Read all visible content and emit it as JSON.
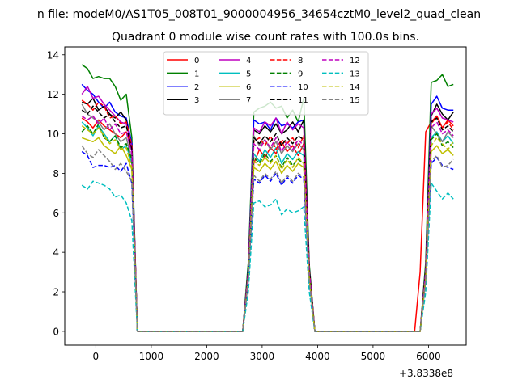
{
  "chart_data": {
    "type": "line",
    "suptitle": "n file: modeM0/AS1T05_008T01_9000004956_34654cztM0_level2_quad_clean",
    "title": "Quadrant 0 module wise count rates with 100.0s bins.",
    "xlabel": "",
    "ylabel": "",
    "x_offset_label": "+3.8338e8",
    "xlim": [
      -560,
      6680
    ],
    "ylim": [
      -0.7,
      14.4
    ],
    "xticks": [
      0,
      1000,
      2000,
      3000,
      4000,
      5000,
      6000
    ],
    "yticks": [
      0,
      2,
      4,
      6,
      8,
      10,
      12,
      14
    ],
    "grid": false,
    "legend": {
      "placement": "upper-center",
      "columns": 4
    },
    "x": [
      -250,
      -150,
      -50,
      50,
      150,
      250,
      350,
      450,
      550,
      650,
      750,
      850,
      950,
      1050,
      1150,
      1250,
      1350,
      1450,
      1550,
      1650,
      1750,
      1850,
      1950,
      2050,
      2150,
      2250,
      2350,
      2450,
      2550,
      2650,
      2750,
      2850,
      2950,
      3050,
      3150,
      3250,
      3350,
      3450,
      3550,
      3650,
      3750,
      3850,
      3950,
      4050,
      4150,
      4250,
      4350,
      4450,
      4550,
      4650,
      4750,
      4850,
      4950,
      5050,
      5150,
      5250,
      5350,
      5450,
      5550,
      5650,
      5750,
      5850,
      5950,
      6050,
      6150,
      6250,
      6350,
      6450
    ],
    "series": [
      {
        "name": "0",
        "color": "#ff0000",
        "dash": "solid",
        "values": [
          10.8,
          10.6,
          10.3,
          10.7,
          10.4,
          10.2,
          10.0,
          9.8,
          10.1,
          9.2,
          0,
          0,
          0,
          0,
          0,
          0,
          0,
          0,
          0,
          0,
          0,
          0,
          0,
          0,
          0,
          0,
          0,
          0,
          0,
          0,
          3.0,
          8.5,
          9.2,
          8.8,
          9.3,
          9.0,
          9.6,
          9.1,
          9.4,
          8.9,
          9.5,
          3.0,
          0,
          0,
          0,
          0,
          0,
          0,
          0,
          0,
          0,
          0,
          0,
          0,
          0,
          0,
          0,
          0,
          0,
          0,
          0,
          3.0,
          10.1,
          10.6,
          10.9,
          10.3,
          10.7,
          10.4
        ]
      },
      {
        "name": "1",
        "color": "#008000",
        "dash": "solid",
        "values": [
          13.5,
          13.3,
          12.8,
          12.9,
          12.8,
          12.8,
          12.4,
          11.7,
          12.0,
          9.8,
          0,
          0,
          0,
          0,
          0,
          0,
          0,
          0,
          0,
          0,
          0,
          0,
          0,
          0,
          0,
          0,
          0,
          0,
          0,
          0,
          3.5,
          11.1,
          11.3,
          11.4,
          11.6,
          11.3,
          11.4,
          10.8,
          11.2,
          10.6,
          11.8,
          3.4,
          0,
          0,
          0,
          0,
          0,
          0,
          0,
          0,
          0,
          0,
          0,
          0,
          0,
          0,
          0,
          0,
          0,
          0,
          0,
          0,
          3.5,
          12.6,
          12.7,
          13.0,
          12.4,
          12.5
        ]
      },
      {
        "name": "2",
        "color": "#0000ff",
        "dash": "solid",
        "values": [
          12.5,
          12.2,
          12.0,
          11.6,
          11.3,
          11.6,
          11.1,
          10.9,
          10.8,
          9.5,
          0,
          0,
          0,
          0,
          0,
          0,
          0,
          0,
          0,
          0,
          0,
          0,
          0,
          0,
          0,
          0,
          0,
          0,
          0,
          0,
          3.2,
          10.7,
          10.5,
          10.6,
          10.2,
          10.8,
          10.4,
          10.5,
          10.3,
          10.6,
          10.7,
          3.2,
          0,
          0,
          0,
          0,
          0,
          0,
          0,
          0,
          0,
          0,
          0,
          0,
          0,
          0,
          0,
          0,
          0,
          0,
          0,
          0,
          3.2,
          11.5,
          11.9,
          11.3,
          11.2,
          11.2
        ]
      },
      {
        "name": "3",
        "color": "#000000",
        "dash": "solid",
        "values": [
          11.6,
          11.5,
          11.8,
          11.2,
          11.4,
          11.0,
          10.8,
          11.1,
          10.7,
          9.1,
          0,
          0,
          0,
          0,
          0,
          0,
          0,
          0,
          0,
          0,
          0,
          0,
          0,
          0,
          0,
          0,
          0,
          0,
          0,
          0,
          3.1,
          10.2,
          10.0,
          10.4,
          10.1,
          10.5,
          10.0,
          10.2,
          10.6,
          10.1,
          10.7,
          3.2,
          0,
          0,
          0,
          0,
          0,
          0,
          0,
          0,
          0,
          0,
          0,
          0,
          0,
          0,
          0,
          0,
          0,
          0,
          0,
          0,
          3.1,
          10.9,
          11.5,
          11.0,
          10.7,
          11.1
        ]
      },
      {
        "name": "4",
        "color": "#bf00bf",
        "dash": "solid",
        "values": [
          12.0,
          12.4,
          11.8,
          11.9,
          11.5,
          11.2,
          10.9,
          10.6,
          10.5,
          9.3,
          0,
          0,
          0,
          0,
          0,
          0,
          0,
          0,
          0,
          0,
          0,
          0,
          0,
          0,
          0,
          0,
          0,
          0,
          0,
          0,
          3.0,
          10.3,
          10.1,
          10.6,
          10.4,
          10.8,
          10.0,
          10.6,
          10.2,
          10.5,
          10.3,
          3.1,
          0,
          0,
          0,
          0,
          0,
          0,
          0,
          0,
          0,
          0,
          0,
          0,
          0,
          0,
          0,
          0,
          0,
          0,
          0,
          0,
          3.0,
          11.0,
          11.3,
          10.8,
          10.7,
          10.6
        ]
      },
      {
        "name": "5",
        "color": "#00bfbf",
        "dash": "solid",
        "values": [
          10.6,
          10.3,
          9.9,
          10.4,
          10.0,
          9.6,
          9.9,
          9.2,
          9.4,
          8.5,
          0,
          0,
          0,
          0,
          0,
          0,
          0,
          0,
          0,
          0,
          0,
          0,
          0,
          0,
          0,
          0,
          0,
          0,
          0,
          0,
          2.8,
          9.0,
          8.6,
          9.2,
          8.8,
          9.3,
          8.5,
          9.0,
          8.7,
          9.1,
          8.9,
          2.8,
          0,
          0,
          0,
          0,
          0,
          0,
          0,
          0,
          0,
          0,
          0,
          0,
          0,
          0,
          0,
          0,
          0,
          0,
          0,
          0,
          2.8,
          9.8,
          10.1,
          9.6,
          9.9,
          9.5
        ]
      },
      {
        "name": "6",
        "color": "#bfbf00",
        "dash": "solid",
        "values": [
          9.8,
          9.7,
          9.6,
          9.8,
          9.4,
          9.2,
          9.0,
          9.4,
          8.9,
          8.2,
          0,
          0,
          0,
          0,
          0,
          0,
          0,
          0,
          0,
          0,
          0,
          0,
          0,
          0,
          0,
          0,
          0,
          0,
          0,
          0,
          2.7,
          8.3,
          8.1,
          8.5,
          8.2,
          8.6,
          8.0,
          8.4,
          8.1,
          8.5,
          8.3,
          2.7,
          0,
          0,
          0,
          0,
          0,
          0,
          0,
          0,
          0,
          0,
          0,
          0,
          0,
          0,
          0,
          0,
          0,
          0,
          0,
          0,
          2.7,
          9.1,
          9.4,
          9.0,
          9.2,
          8.9
        ]
      },
      {
        "name": "7",
        "color": "#808080",
        "dash": "solid",
        "values": [
          11.5,
          11.0,
          10.8,
          10.6,
          10.2,
          10.5,
          10.0,
          9.6,
          9.8,
          8.7,
          0,
          0,
          0,
          0,
          0,
          0,
          0,
          0,
          0,
          0,
          0,
          0,
          0,
          0,
          0,
          0,
          0,
          0,
          0,
          0,
          3.0,
          9.9,
          9.4,
          9.7,
          9.2,
          9.6,
          9.0,
          9.4,
          9.1,
          9.5,
          9.2,
          3.0,
          0,
          0,
          0,
          0,
          0,
          0,
          0,
          0,
          0,
          0,
          0,
          0,
          0,
          0,
          0,
          0,
          0,
          0,
          0,
          0,
          3.0,
          10.4,
          10.0,
          9.6,
          10.1,
          9.8
        ]
      },
      {
        "name": "8",
        "color": "#ff0000",
        "dash": "dashed",
        "values": [
          11.7,
          11.5,
          11.2,
          11.6,
          11.4,
          10.8,
          10.9,
          10.5,
          10.6,
          9.4,
          0,
          0,
          0,
          0,
          0,
          0,
          0,
          0,
          0,
          0,
          0,
          0,
          0,
          0,
          0,
          0,
          0,
          0,
          0,
          0,
          3.1,
          9.6,
          9.8,
          9.4,
          9.9,
          9.2,
          9.7,
          9.5,
          9.8,
          9.3,
          9.9,
          3.1,
          0,
          0,
          0,
          0,
          0,
          0,
          0,
          0,
          0,
          0,
          0,
          0,
          0,
          0,
          0,
          0,
          0,
          0,
          0,
          0,
          3.1,
          10.5,
          10.9,
          10.3,
          10.6,
          10.2
        ]
      },
      {
        "name": "9",
        "color": "#008000",
        "dash": "dashed",
        "values": [
          10.1,
          10.4,
          10.0,
          10.5,
          9.8,
          9.6,
          9.9,
          9.3,
          9.5,
          8.7,
          0,
          0,
          0,
          0,
          0,
          0,
          0,
          0,
          0,
          0,
          0,
          0,
          0,
          0,
          0,
          0,
          0,
          0,
          0,
          0,
          2.8,
          8.8,
          8.5,
          9.0,
          8.6,
          8.9,
          8.3,
          8.8,
          8.4,
          8.7,
          8.5,
          2.8,
          0,
          0,
          0,
          0,
          0,
          0,
          0,
          0,
          0,
          0,
          0,
          0,
          0,
          0,
          0,
          0,
          0,
          0,
          0,
          0,
          2.8,
          9.7,
          10.0,
          9.4,
          9.6,
          9.3
        ]
      },
      {
        "name": "10",
        "color": "#0000ff",
        "dash": "dashed",
        "values": [
          9.1,
          8.9,
          8.3,
          8.4,
          8.4,
          8.3,
          8.4,
          8.1,
          8.5,
          7.5,
          0,
          0,
          0,
          0,
          0,
          0,
          0,
          0,
          0,
          0,
          0,
          0,
          0,
          0,
          0,
          0,
          0,
          0,
          0,
          0,
          2.6,
          7.7,
          7.5,
          7.9,
          7.6,
          8.0,
          7.4,
          7.8,
          7.5,
          7.9,
          7.7,
          2.6,
          0,
          0,
          0,
          0,
          0,
          0,
          0,
          0,
          0,
          0,
          0,
          0,
          0,
          0,
          0,
          0,
          0,
          0,
          0,
          0,
          2.6,
          8.5,
          8.8,
          8.4,
          8.3,
          8.2
        ]
      },
      {
        "name": "11",
        "color": "#000000",
        "dash": "dashed",
        "values": [
          11.2,
          11.0,
          11.4,
          11.1,
          10.8,
          11.0,
          10.6,
          10.3,
          10.4,
          9.2,
          0,
          0,
          0,
          0,
          0,
          0,
          0,
          0,
          0,
          0,
          0,
          0,
          0,
          0,
          0,
          0,
          0,
          0,
          0,
          0,
          3.1,
          9.8,
          9.5,
          9.9,
          9.6,
          10.0,
          9.4,
          9.8,
          9.5,
          9.9,
          9.7,
          3.1,
          0,
          0,
          0,
          0,
          0,
          0,
          0,
          0,
          0,
          0,
          0,
          0,
          0,
          0,
          0,
          0,
          0,
          0,
          0,
          0,
          3.1,
          10.6,
          10.8,
          10.2,
          10.4,
          10.1
        ]
      },
      {
        "name": "12",
        "color": "#bf00bf",
        "dash": "dashed",
        "values": [
          10.9,
          10.7,
          10.9,
          10.5,
          10.8,
          10.2,
          10.5,
          10.0,
          10.1,
          9.0,
          0,
          0,
          0,
          0,
          0,
          0,
          0,
          0,
          0,
          0,
          0,
          0,
          0,
          0,
          0,
          0,
          0,
          0,
          0,
          0,
          3.0,
          9.5,
          9.2,
          9.7,
          9.3,
          9.8,
          9.1,
          9.6,
          9.2,
          9.7,
          9.4,
          3.0,
          0,
          0,
          0,
          0,
          0,
          0,
          0,
          0,
          0,
          0,
          0,
          0,
          0,
          0,
          0,
          0,
          0,
          0,
          0,
          0,
          3.0,
          10.3,
          10.6,
          10.0,
          10.2,
          9.9
        ]
      },
      {
        "name": "13",
        "color": "#00bfbf",
        "dash": "dashed",
        "values": [
          7.4,
          7.2,
          7.6,
          7.5,
          7.4,
          7.2,
          6.8,
          6.9,
          6.5,
          5.6,
          0,
          0,
          0,
          0,
          0,
          0,
          0,
          0,
          0,
          0,
          0,
          0,
          0,
          0,
          0,
          0,
          0,
          0,
          0,
          0,
          2.0,
          6.5,
          6.6,
          6.3,
          6.4,
          6.7,
          5.9,
          6.2,
          6.0,
          6.1,
          6.3,
          2.0,
          0,
          0,
          0,
          0,
          0,
          0,
          0,
          0,
          0,
          0,
          0,
          0,
          0,
          0,
          0,
          0,
          0,
          0,
          0,
          0,
          2.0,
          7.5,
          7.1,
          6.7,
          7.0,
          6.7
        ]
      },
      {
        "name": "14",
        "color": "#bfbf00",
        "dash": "dashed",
        "values": [
          10.4,
          10.2,
          10.0,
          10.3,
          9.9,
          9.5,
          9.7,
          9.2,
          9.3,
          8.3,
          0,
          0,
          0,
          0,
          0,
          0,
          0,
          0,
          0,
          0,
          0,
          0,
          0,
          0,
          0,
          0,
          0,
          0,
          0,
          0,
          2.7,
          8.6,
          8.4,
          8.8,
          8.5,
          8.9,
          8.2,
          8.7,
          8.3,
          8.8,
          8.5,
          2.7,
          0,
          0,
          0,
          0,
          0,
          0,
          0,
          0,
          0,
          0,
          0,
          0,
          0,
          0,
          0,
          0,
          0,
          0,
          0,
          0,
          2.7,
          9.4,
          9.8,
          9.5,
          9.2,
          9.6
        ]
      },
      {
        "name": "15",
        "color": "#808080",
        "dash": "dashed",
        "values": [
          9.4,
          9.0,
          8.8,
          9.2,
          8.9,
          8.6,
          8.2,
          8.5,
          8.1,
          7.6,
          0,
          0,
          0,
          0,
          0,
          0,
          0,
          0,
          0,
          0,
          0,
          0,
          0,
          0,
          0,
          0,
          0,
          0,
          0,
          0,
          2.6,
          7.9,
          7.6,
          8.0,
          7.7,
          8.1,
          7.5,
          7.9,
          7.6,
          8.0,
          7.8,
          2.6,
          0,
          0,
          0,
          0,
          0,
          0,
          0,
          0,
          0,
          0,
          0,
          0,
          0,
          0,
          0,
          0,
          0,
          0,
          0,
          0,
          2.6,
          8.6,
          8.9,
          8.3,
          8.4,
          8.7
        ]
      }
    ]
  }
}
